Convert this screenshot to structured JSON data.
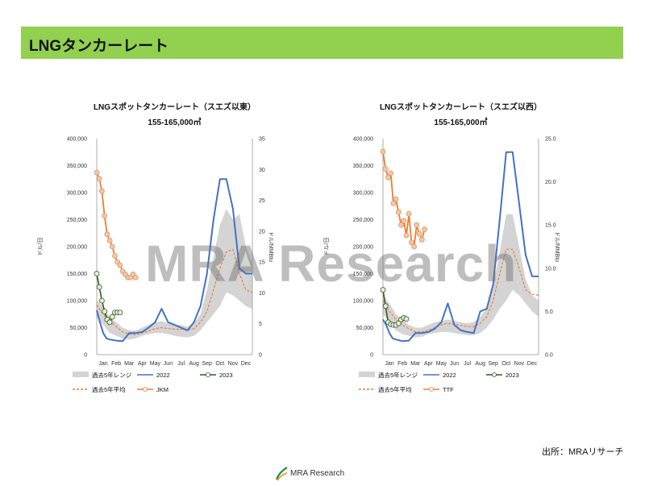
{
  "page_title": "LNGタンカーレート",
  "source": "出所：MRAリサーチ",
  "watermark": "MRA Research",
  "footer": {
    "company": "MRA Research"
  },
  "colors": {
    "title_bar": "#92d050",
    "band": "#d4d4d4",
    "y2022": "#4472c4",
    "y2023": "#375623",
    "avg5": "#ed7d31",
    "price": "#ed7d31"
  },
  "chart_data": [
    {
      "type": "line",
      "title": "LNGスポットタンカーレート（スエズ以東）",
      "subtitle": "155-165,000㎥",
      "ylabel": "ドル/日",
      "y2label": "ドル/MMBtu",
      "ylim": [
        0,
        400000
      ],
      "y2lim": [
        0,
        35
      ],
      "yticks": [
        "0",
        "50,000",
        "100,000",
        "150,000",
        "200,000",
        "250,000",
        "300,000",
        "350,000",
        "400,000"
      ],
      "y2ticks": [
        "0",
        "5",
        "10",
        "15",
        "20",
        "25",
        "30",
        "35"
      ],
      "months": [
        "Jan",
        "Feb",
        "Mar",
        "Apr",
        "May",
        "Jun",
        "Jul",
        "Aug",
        "Sep",
        "Oct",
        "Nov",
        "Dec"
      ],
      "legend": [
        "過去5年レンジ",
        "2022",
        "2023",
        "過去5年平均",
        "JKM"
      ],
      "band": {
        "x": [
          1,
          1.5,
          2,
          2.5,
          3,
          3.5,
          4,
          4.5,
          5,
          5.5,
          6,
          6.5,
          7,
          7.5,
          8,
          8.5,
          9,
          9.5,
          10,
          10.5,
          11,
          11.5,
          12,
          12.5,
          13
        ],
        "high": [
          100000,
          90000,
          70000,
          60000,
          50000,
          45000,
          45000,
          50000,
          55000,
          60000,
          62000,
          58000,
          55000,
          55000,
          52000,
          58000,
          75000,
          120000,
          180000,
          240000,
          270000,
          250000,
          260000,
          200000,
          170000
        ],
        "low": [
          70000,
          55000,
          40000,
          35000,
          30000,
          28000,
          30000,
          35000,
          38000,
          40000,
          40000,
          38000,
          35000,
          33000,
          32000,
          35000,
          45000,
          60000,
          75000,
          90000,
          115000,
          110000,
          100000,
          90000,
          85000
        ]
      },
      "series": [
        {
          "name": "2022",
          "x": [
            1,
            1.25,
            1.5,
            1.75,
            2,
            2.5,
            3,
            3.5,
            4,
            4.5,
            5,
            5.5,
            6,
            6.5,
            7,
            7.5,
            8,
            8.5,
            9,
            9.5,
            10,
            10.5,
            11,
            11.5,
            12,
            12.5,
            13
          ],
          "values": [
            82000,
            60000,
            40000,
            30000,
            28000,
            26000,
            25000,
            40000,
            40000,
            42000,
            50000,
            60000,
            85000,
            60000,
            55000,
            50000,
            45000,
            60000,
            90000,
            150000,
            250000,
            325000,
            325000,
            270000,
            160000,
            150000,
            150000
          ]
        },
        {
          "name": "過去5年平均",
          "x": [
            1,
            1.5,
            2,
            2.5,
            3,
            3.5,
            4,
            4.5,
            5,
            5.5,
            6,
            6.5,
            7,
            7.5,
            8,
            8.5,
            9,
            9.5,
            10,
            10.5,
            11,
            11.5,
            12,
            12.5,
            13
          ],
          "values": [
            92000,
            75000,
            62000,
            52000,
            42000,
            38000,
            37000,
            40000,
            44000,
            48000,
            50000,
            48000,
            47000,
            47000,
            46000,
            48000,
            60000,
            80000,
            120000,
            160000,
            190000,
            195000,
            150000,
            120000,
            115000
          ]
        },
        {
          "name": "2023",
          "x": [
            1,
            1.2,
            1.4,
            1.6,
            1.8,
            2,
            2.2,
            2.4,
            2.6,
            2.8
          ],
          "values": [
            150000,
            125000,
            100000,
            80000,
            65000,
            60000,
            70000,
            78000,
            78000,
            78000
          ]
        },
        {
          "name": "JKM",
          "axis": "y2",
          "x": [
            1,
            1.2,
            1.4,
            1.6,
            1.8,
            2,
            2.2,
            2.4,
            2.6,
            2.8,
            3,
            3.2,
            3.4,
            3.6,
            3.8,
            4
          ],
          "values": [
            29.5,
            28.5,
            26.5,
            22.5,
            19.5,
            18.5,
            17.5,
            16,
            15,
            14.5,
            13.5,
            13,
            12.5,
            12.5,
            13,
            12.5
          ]
        }
      ]
    },
    {
      "type": "line",
      "title": "LNGスポットタンカーレート（スエズ以西）",
      "subtitle": "155-165,000㎥",
      "ylabel": "ドル/日",
      "y2label": "ドル/MMBtu",
      "ylim": [
        0,
        400000
      ],
      "y2lim": [
        0,
        25
      ],
      "yticks": [
        "0",
        "50,000",
        "100,000",
        "150,000",
        "200,000",
        "250,000",
        "300,000",
        "350,000",
        "400,000"
      ],
      "y2ticks": [
        "0.0",
        "5.0",
        "10.0",
        "15.0",
        "20.0",
        "25.0"
      ],
      "months": [
        "Jan",
        "Feb",
        "Mar",
        "Apr",
        "May",
        "Jun",
        "Jul",
        "Aug",
        "Sep",
        "Oct",
        "Nov",
        "Dec"
      ],
      "legend": [
        "過去5年レンジ",
        "2022",
        "2023",
        "過去5年平均",
        "TTF"
      ],
      "band": {
        "x": [
          1,
          1.5,
          2,
          2.5,
          3,
          3.5,
          4,
          4.5,
          5,
          5.5,
          6,
          6.5,
          7,
          7.5,
          8,
          8.5,
          9,
          9.5,
          10,
          10.5,
          11,
          11.5,
          12,
          12.5,
          13
        ],
        "high": [
          110000,
          95000,
          75000,
          65000,
          55000,
          50000,
          50000,
          55000,
          60000,
          62000,
          65000,
          62000,
          60000,
          58000,
          60000,
          70000,
          85000,
          130000,
          190000,
          260000,
          260000,
          200000,
          140000,
          110000,
          100000
        ],
        "low": [
          75000,
          60000,
          45000,
          38000,
          35000,
          32000,
          33000,
          38000,
          40000,
          42000,
          42000,
          40000,
          38000,
          36000,
          36000,
          40000,
          50000,
          65000,
          85000,
          100000,
          120000,
          110000,
          95000,
          80000,
          70000
        ]
      },
      "series": [
        {
          "name": "2022",
          "x": [
            1,
            1.25,
            1.5,
            1.75,
            2,
            2.5,
            3,
            3.5,
            4,
            4.5,
            5,
            5.5,
            6,
            6.5,
            7,
            7.5,
            8,
            8.5,
            9,
            9.5,
            10,
            10.5,
            11,
            11.5,
            12,
            12.5,
            13
          ],
          "values": [
            65000,
            55000,
            40000,
            30000,
            28000,
            25000,
            26000,
            40000,
            40000,
            42000,
            48000,
            60000,
            95000,
            55000,
            45000,
            42000,
            40000,
            80000,
            85000,
            130000,
            250000,
            375000,
            375000,
            280000,
            185000,
            145000,
            145000
          ]
        },
        {
          "name": "過去5年平均",
          "x": [
            1,
            1.5,
            2,
            2.5,
            3,
            3.5,
            4,
            4.5,
            5,
            5.5,
            6,
            6.5,
            7,
            7.5,
            8,
            8.5,
            9,
            9.5,
            10,
            10.5,
            11,
            11.5,
            12,
            12.5,
            13
          ],
          "values": [
            100000,
            80000,
            65000,
            55000,
            48000,
            42000,
            42000,
            45000,
            50000,
            55000,
            58000,
            56000,
            54000,
            52000,
            52000,
            58000,
            70000,
            100000,
            150000,
            195000,
            195000,
            160000,
            120000,
            112000,
            110000
          ]
        },
        {
          "name": "2023",
          "x": [
            1,
            1.2,
            1.4,
            1.6,
            1.8,
            2,
            2.2,
            2.4,
            2.6,
            2.8
          ],
          "values": [
            120000,
            90000,
            60000,
            56000,
            55000,
            55000,
            58000,
            65000,
            68000,
            66000
          ]
        },
        {
          "name": "TTF",
          "axis": "y2",
          "x": [
            1,
            1.2,
            1.4,
            1.6,
            1.8,
            2,
            2.2,
            2.4,
            2.6,
            2.8,
            3,
            3.2,
            3.4,
            3.6,
            3.8,
            4,
            4.2
          ],
          "values": [
            23.5,
            21.5,
            20.5,
            21,
            17.5,
            18,
            16.5,
            15,
            15.5,
            13.8,
            16.3,
            13,
            12.5,
            15,
            14,
            13.3,
            14.5
          ]
        }
      ]
    }
  ]
}
